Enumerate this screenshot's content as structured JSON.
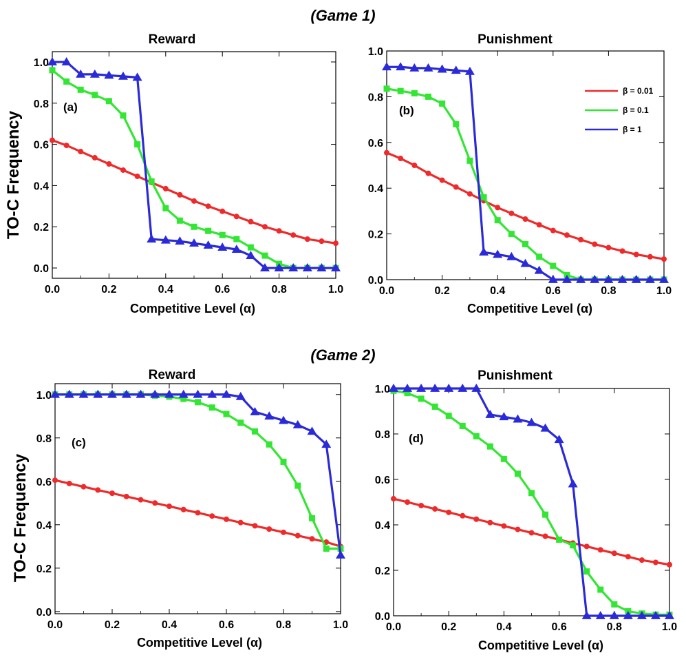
{
  "figure": {
    "game1_title": "(Game 1)",
    "game2_title": "(Game 2)",
    "ylabel": "TO-C Frequency"
  },
  "colors": {
    "red": "#ee2a2a",
    "green": "#33e633",
    "blue": "#2a2ad8"
  },
  "chart_data": [
    {
      "type": "line",
      "game": "Game 1",
      "title": "Reward",
      "panel_label": "(a)",
      "xlabel": "Competitive Level (α)",
      "ylabel": "TO-C Frequency",
      "xlim": [
        0,
        1
      ],
      "ylim": [
        -0.05,
        1.05
      ],
      "xticks": [
        "0.0",
        "0.2",
        "0.4",
        "0.6",
        "0.8",
        "1.0"
      ],
      "yticks": [
        "0.0",
        "0.2",
        "0.4",
        "0.6",
        "0.8",
        "1.0"
      ],
      "x": [
        0,
        0.05,
        0.1,
        0.15,
        0.2,
        0.25,
        0.3,
        0.35,
        0.4,
        0.45,
        0.5,
        0.55,
        0.6,
        0.65,
        0.7,
        0.75,
        0.8,
        0.85,
        0.9,
        0.95,
        1.0
      ],
      "series": [
        {
          "name": "β = 0.01",
          "color": "red",
          "marker": "circle",
          "values": [
            0.62,
            0.595,
            0.565,
            0.535,
            0.505,
            0.475,
            0.445,
            0.415,
            0.385,
            0.355,
            0.325,
            0.3,
            0.275,
            0.25,
            0.225,
            0.2,
            0.18,
            0.16,
            0.14,
            0.13,
            0.12
          ]
        },
        {
          "name": "β = 0.1",
          "color": "green",
          "marker": "square",
          "values": [
            0.96,
            0.905,
            0.865,
            0.84,
            0.81,
            0.74,
            0.6,
            0.42,
            0.29,
            0.23,
            0.2,
            0.18,
            0.16,
            0.14,
            0.1,
            0.06,
            0.02,
            0.0,
            0.0,
            0.0,
            0.0
          ]
        },
        {
          "name": "β = 1",
          "color": "blue",
          "marker": "triangle",
          "values": [
            1.0,
            1.0,
            0.94,
            0.94,
            0.935,
            0.93,
            0.925,
            0.14,
            0.135,
            0.13,
            0.12,
            0.11,
            0.1,
            0.09,
            0.06,
            0.0,
            0.0,
            0.0,
            0.0,
            0.0,
            0.0
          ]
        }
      ]
    },
    {
      "type": "line",
      "game": "Game 1",
      "title": "Punishment",
      "panel_label": "(b)",
      "xlabel": "Competitive Level (α)",
      "ylabel": "",
      "xlim": [
        0,
        1
      ],
      "ylim": [
        0,
        1.0
      ],
      "xticks": [
        "0.0",
        "0.2",
        "0.4",
        "0.6",
        "0.8",
        "1.0"
      ],
      "yticks": [
        "0.0",
        "0.2",
        "0.4",
        "0.6",
        "0.8",
        "1.0"
      ],
      "legend": {
        "position": "top-right",
        "entries": [
          "β = 0.01",
          "β = 0.1",
          "β = 1"
        ]
      },
      "x": [
        0,
        0.05,
        0.1,
        0.15,
        0.2,
        0.25,
        0.3,
        0.35,
        0.4,
        0.45,
        0.5,
        0.55,
        0.6,
        0.65,
        0.7,
        0.75,
        0.8,
        0.85,
        0.9,
        0.95,
        1.0
      ],
      "series": [
        {
          "name": "β = 0.01",
          "color": "red",
          "marker": "circle",
          "values": [
            0.555,
            0.53,
            0.5,
            0.465,
            0.435,
            0.405,
            0.375,
            0.345,
            0.315,
            0.29,
            0.265,
            0.24,
            0.215,
            0.195,
            0.175,
            0.155,
            0.14,
            0.125,
            0.11,
            0.1,
            0.09
          ]
        },
        {
          "name": "β = 0.1",
          "color": "green",
          "marker": "square",
          "values": [
            0.835,
            0.825,
            0.815,
            0.8,
            0.77,
            0.68,
            0.52,
            0.36,
            0.26,
            0.2,
            0.155,
            0.1,
            0.06,
            0.02,
            0.0,
            0.0,
            0.0,
            0.0,
            0.0,
            0.0,
            0.0
          ]
        },
        {
          "name": "β = 1",
          "color": "blue",
          "marker": "triangle",
          "values": [
            0.93,
            0.93,
            0.925,
            0.925,
            0.92,
            0.915,
            0.91,
            0.12,
            0.11,
            0.1,
            0.07,
            0.04,
            0.0,
            0.0,
            0.0,
            0.0,
            0.0,
            0.0,
            0.0,
            0.0,
            0.0
          ]
        }
      ]
    },
    {
      "type": "line",
      "game": "Game 2",
      "title": "Reward",
      "panel_label": "(c)",
      "xlabel": "Competitive Level (α)",
      "ylabel": "TO-C Frequency",
      "xlim": [
        0,
        1
      ],
      "ylim": [
        -0.01,
        1.05
      ],
      "xticks": [
        "0.0",
        "0.2",
        "0.4",
        "0.6",
        "0.8",
        "1.0"
      ],
      "yticks": [
        "0.0",
        "0.2",
        "0.4",
        "0.6",
        "0.8",
        "1.0"
      ],
      "x": [
        0,
        0.05,
        0.1,
        0.15,
        0.2,
        0.25,
        0.3,
        0.35,
        0.4,
        0.45,
        0.5,
        0.55,
        0.6,
        0.65,
        0.7,
        0.75,
        0.8,
        0.85,
        0.9,
        0.95,
        1.0
      ],
      "series": [
        {
          "name": "β = 0.01",
          "color": "red",
          "marker": "circle",
          "values": [
            0.605,
            0.59,
            0.575,
            0.56,
            0.545,
            0.53,
            0.515,
            0.5,
            0.485,
            0.47,
            0.455,
            0.44,
            0.425,
            0.41,
            0.395,
            0.38,
            0.365,
            0.35,
            0.335,
            0.32,
            0.3
          ]
        },
        {
          "name": "β = 0.1",
          "color": "green",
          "marker": "square",
          "values": [
            1.0,
            1.0,
            1.0,
            1.0,
            1.0,
            1.0,
            1.0,
            0.995,
            0.99,
            0.98,
            0.965,
            0.94,
            0.91,
            0.87,
            0.83,
            0.77,
            0.69,
            0.58,
            0.43,
            0.29,
            0.29
          ]
        },
        {
          "name": "β = 1",
          "color": "blue",
          "marker": "triangle",
          "values": [
            1.0,
            1.0,
            1.0,
            1.0,
            1.0,
            1.0,
            1.0,
            1.0,
            1.0,
            1.0,
            1.0,
            1.0,
            1.0,
            0.99,
            0.92,
            0.9,
            0.88,
            0.86,
            0.83,
            0.77,
            0.26
          ]
        }
      ]
    },
    {
      "type": "line",
      "game": "Game 2",
      "title": "Punishment",
      "panel_label": "(d)",
      "xlabel": "Competitive Level (α)",
      "ylabel": "",
      "xlim": [
        0,
        1
      ],
      "ylim": [
        0,
        1.0
      ],
      "xticks": [
        "0.0",
        "0.2",
        "0.4",
        "0.6",
        "0.8",
        "1.0"
      ],
      "yticks": [
        "0.0",
        "0.2",
        "0.4",
        "0.6",
        "0.8",
        "1.0"
      ],
      "x": [
        0,
        0.05,
        0.1,
        0.15,
        0.2,
        0.25,
        0.3,
        0.35,
        0.4,
        0.45,
        0.5,
        0.55,
        0.6,
        0.65,
        0.7,
        0.75,
        0.8,
        0.85,
        0.9,
        0.95,
        1.0
      ],
      "series": [
        {
          "name": "β = 0.01",
          "color": "red",
          "marker": "circle",
          "values": [
            0.515,
            0.5,
            0.485,
            0.47,
            0.455,
            0.44,
            0.425,
            0.41,
            0.395,
            0.38,
            0.365,
            0.35,
            0.335,
            0.32,
            0.305,
            0.29,
            0.275,
            0.26,
            0.245,
            0.235,
            0.225
          ]
        },
        {
          "name": "β = 0.1",
          "color": "green",
          "marker": "square",
          "values": [
            0.99,
            0.98,
            0.955,
            0.92,
            0.88,
            0.835,
            0.79,
            0.745,
            0.69,
            0.625,
            0.54,
            0.445,
            0.335,
            0.31,
            0.195,
            0.115,
            0.05,
            0.02,
            0.01,
            0.005,
            0.005
          ]
        },
        {
          "name": "β = 1",
          "color": "blue",
          "marker": "triangle",
          "values": [
            1.0,
            1.0,
            1.0,
            1.0,
            1.0,
            1.0,
            1.0,
            0.885,
            0.875,
            0.865,
            0.85,
            0.825,
            0.775,
            0.58,
            0.0,
            0.0,
            0.0,
            0.0,
            0.0,
            0.0,
            0.0
          ]
        }
      ]
    }
  ]
}
